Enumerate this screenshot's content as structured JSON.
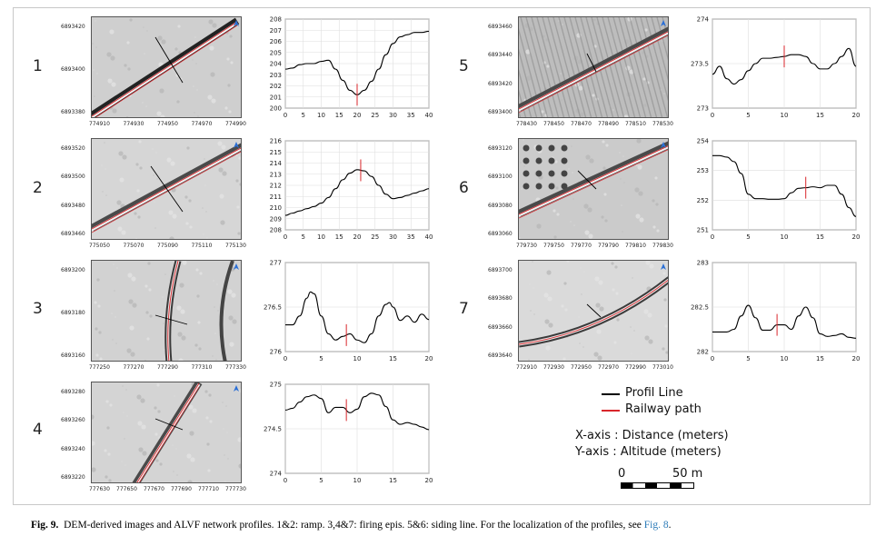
{
  "caption": {
    "label": "Fig. 9.",
    "text": "DEM-derived images and ALVF network profiles. 1&2: ramp. 3,4&7: firing epis. 5&6: siding line. For the localization of the profiles, see ",
    "link": "Fig. 8",
    "end": "."
  },
  "legend": {
    "profil_line": "Profil Line",
    "railway_path": "Railway path",
    "x_axis": "X-axis : Distance (meters)",
    "y_axis": "Y-axis : Altitude (meters)",
    "scale_start": "0",
    "scale_end": "50 m"
  },
  "colors": {
    "profile": "#000000",
    "railway": "#d9262b",
    "marker": "#d9262b"
  },
  "panels": [
    {
      "number": "1",
      "map_yticks": [
        "6893420",
        "6893400",
        "6893380"
      ],
      "map_xticks": [
        "774910",
        "774930",
        "774950",
        "774970",
        "774990"
      ]
    },
    {
      "number": "2",
      "map_yticks": [
        "6893520",
        "6893500",
        "6893480",
        "6893460"
      ],
      "map_xticks": [
        "775050",
        "775070",
        "775090",
        "775110",
        "775130"
      ]
    },
    {
      "number": "3",
      "map_yticks": [
        "6893200",
        "6893180",
        "6893160"
      ],
      "map_xticks": [
        "777250",
        "777270",
        "777290",
        "777310",
        "777330"
      ]
    },
    {
      "number": "4",
      "map_yticks": [
        "6893280",
        "6893260",
        "6893240",
        "6893220"
      ],
      "map_xticks": [
        "777630",
        "777650",
        "777670",
        "777690",
        "777710",
        "777730"
      ]
    },
    {
      "number": "5",
      "map_yticks": [
        "6893460",
        "6893440",
        "6893420",
        "6893400"
      ],
      "map_xticks": [
        "778430",
        "778450",
        "778470",
        "778490",
        "778510",
        "778530"
      ]
    },
    {
      "number": "6",
      "map_yticks": [
        "6893120",
        "6893100",
        "6893080",
        "6893060"
      ],
      "map_xticks": [
        "779730",
        "779750",
        "779770",
        "779790",
        "779810",
        "779830"
      ]
    },
    {
      "number": "7",
      "map_yticks": [
        "6893700",
        "6893680",
        "6893660",
        "6893640"
      ],
      "map_xticks": [
        "772910",
        "772930",
        "772950",
        "772970",
        "772990",
        "773010"
      ]
    }
  ],
  "chart_data": [
    {
      "type": "line",
      "panel": "1",
      "x": [
        0,
        2,
        4,
        6,
        8,
        10,
        12,
        14,
        16,
        18,
        20,
        22,
        24,
        26,
        28,
        30,
        32,
        34,
        36,
        38,
        40
      ],
      "y": [
        203.5,
        203.6,
        203.9,
        204.0,
        204.0,
        204.2,
        204.3,
        203.5,
        202.5,
        201.6,
        201.2,
        201.6,
        202.4,
        203.5,
        204.8,
        205.8,
        206.4,
        206.6,
        206.8,
        206.8,
        206.9
      ],
      "xlim": [
        0,
        40
      ],
      "ylim": [
        200,
        208
      ],
      "xticks": [
        0,
        5,
        10,
        15,
        20,
        25,
        30,
        35,
        40
      ],
      "yticks": [
        200,
        201,
        202,
        203,
        204,
        205,
        206,
        207,
        208
      ],
      "marker_x": 20
    },
    {
      "type": "line",
      "panel": "2",
      "x": [
        0,
        2,
        4,
        6,
        8,
        10,
        12,
        14,
        16,
        18,
        20,
        22,
        24,
        26,
        28,
        30,
        32,
        34,
        36,
        38,
        40
      ],
      "y": [
        209.3,
        209.5,
        209.7,
        209.9,
        210.1,
        210.4,
        210.9,
        211.7,
        212.5,
        213.1,
        213.4,
        213.3,
        212.8,
        212.0,
        211.2,
        210.8,
        210.9,
        211.1,
        211.3,
        211.5,
        211.7
      ],
      "xlim": [
        0,
        40
      ],
      "ylim": [
        208,
        216
      ],
      "xticks": [
        0,
        5,
        10,
        15,
        20,
        25,
        30,
        35,
        40
      ],
      "yticks": [
        208,
        209,
        210,
        211,
        212,
        213,
        214,
        215,
        216
      ],
      "marker_x": 21
    },
    {
      "type": "line",
      "panel": "3",
      "x": [
        0,
        1,
        2,
        3,
        3.5,
        4,
        5,
        6,
        7,
        8,
        9,
        10,
        11,
        12,
        13,
        14,
        14.5,
        15,
        16,
        17,
        18,
        19,
        20
      ],
      "y": [
        276.3,
        276.3,
        276.4,
        276.6,
        276.67,
        276.65,
        276.4,
        276.2,
        276.13,
        276.17,
        276.2,
        276.13,
        276.1,
        276.2,
        276.4,
        276.53,
        276.55,
        276.5,
        276.35,
        276.4,
        276.33,
        276.42,
        276.36
      ],
      "xlim": [
        0,
        20
      ],
      "ylim": [
        276,
        277
      ],
      "xticks": [
        0,
        5,
        10,
        15,
        20
      ],
      "yticks": [
        276,
        276.5,
        277
      ],
      "marker_x": 8.5
    },
    {
      "type": "line",
      "panel": "4",
      "x": [
        0,
        1,
        2,
        3,
        4,
        5,
        6,
        7,
        8,
        9,
        10,
        11,
        12,
        13,
        14,
        15,
        16,
        17,
        18,
        19,
        20
      ],
      "y": [
        274.71,
        274.73,
        274.8,
        274.86,
        274.88,
        274.84,
        274.68,
        274.74,
        274.74,
        274.68,
        274.72,
        274.86,
        274.9,
        274.88,
        274.75,
        274.6,
        274.55,
        274.57,
        274.55,
        274.52,
        274.49
      ],
      "xlim": [
        0,
        20
      ],
      "ylim": [
        274,
        275
      ],
      "xticks": [
        0,
        5,
        10,
        15,
        20
      ],
      "yticks": [
        274,
        274.5,
        275
      ],
      "marker_x": 8.5
    },
    {
      "type": "line",
      "panel": "5",
      "x": [
        0,
        1,
        2,
        3,
        4,
        5,
        6,
        7,
        8,
        9,
        10,
        11,
        12,
        13,
        14,
        15,
        16,
        17,
        18,
        19,
        20
      ],
      "y": [
        273.38,
        273.47,
        273.33,
        273.27,
        273.32,
        273.42,
        273.5,
        273.56,
        273.56,
        273.57,
        273.58,
        273.6,
        273.6,
        273.58,
        273.5,
        273.44,
        273.44,
        273.5,
        273.58,
        273.67,
        273.47
      ],
      "xlim": [
        0,
        20
      ],
      "ylim": [
        273,
        274
      ],
      "xticks": [
        0,
        5,
        10,
        15,
        20
      ],
      "yticks": [
        273,
        273.5,
        274
      ],
      "marker_x": 10
    },
    {
      "type": "line",
      "panel": "6",
      "x": [
        0,
        1,
        2,
        3,
        4,
        5,
        6,
        7,
        8,
        9,
        10,
        11,
        12,
        13,
        14,
        15,
        16,
        17,
        18,
        19,
        20
      ],
      "y": [
        253.5,
        253.5,
        253.45,
        253.3,
        252.9,
        252.2,
        252.05,
        252.05,
        252.03,
        252.03,
        252.05,
        252.25,
        252.4,
        252.42,
        252.45,
        252.42,
        252.5,
        252.5,
        252.2,
        251.75,
        251.45
      ],
      "xlim": [
        0,
        20
      ],
      "ylim": [
        251,
        254
      ],
      "xticks": [
        0,
        5,
        10,
        15,
        20
      ],
      "yticks": [
        251,
        252,
        253,
        254
      ],
      "marker_x": 13
    },
    {
      "type": "line",
      "panel": "7",
      "x": [
        0,
        1,
        2,
        3,
        4,
        5,
        6,
        7,
        8,
        9,
        10,
        11,
        12,
        13,
        14,
        15,
        16,
        17,
        18,
        19,
        20
      ],
      "y": [
        282.22,
        282.22,
        282.22,
        282.25,
        282.4,
        282.52,
        282.38,
        282.24,
        282.24,
        282.3,
        282.3,
        282.25,
        282.4,
        282.5,
        282.38,
        282.2,
        282.17,
        282.18,
        282.2,
        282.16,
        282.15
      ],
      "xlim": [
        0,
        20
      ],
      "ylim": [
        282,
        283
      ],
      "xticks": [
        0,
        5,
        10,
        15,
        20
      ],
      "yticks": [
        282,
        282.5,
        283
      ],
      "marker_x": 9
    }
  ]
}
